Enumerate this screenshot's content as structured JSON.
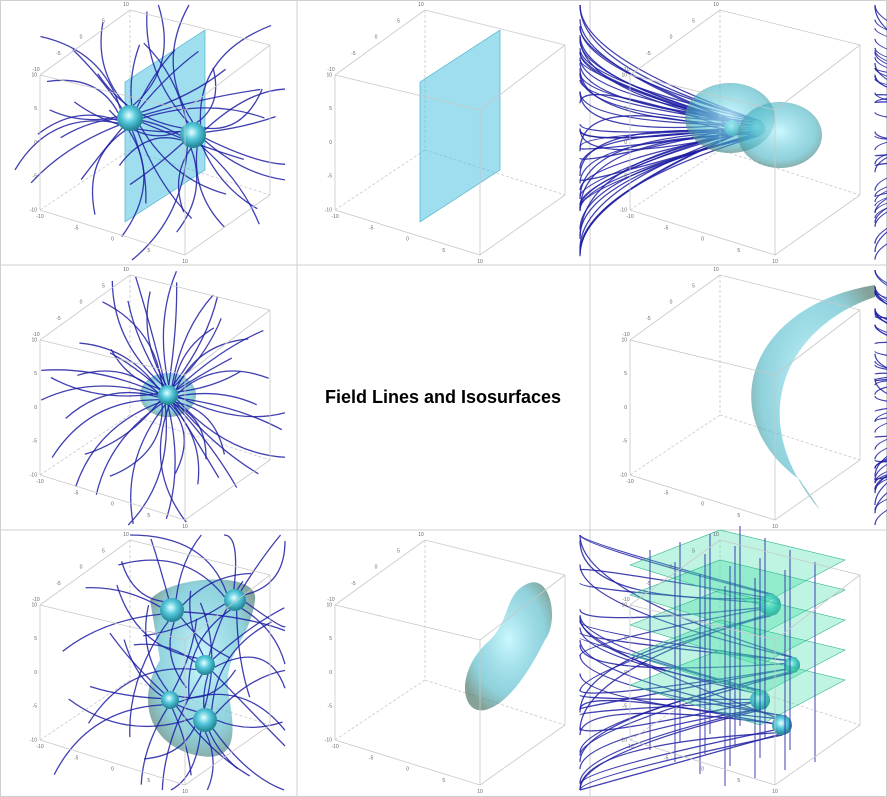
{
  "title": "Field Lines and Isosurfaces",
  "tick_labels": {
    "vertical": [
      "10",
      "5",
      "0",
      "-5",
      "-10"
    ],
    "depth": [
      "-10",
      "-5",
      "0",
      "5",
      "10"
    ]
  }
}
